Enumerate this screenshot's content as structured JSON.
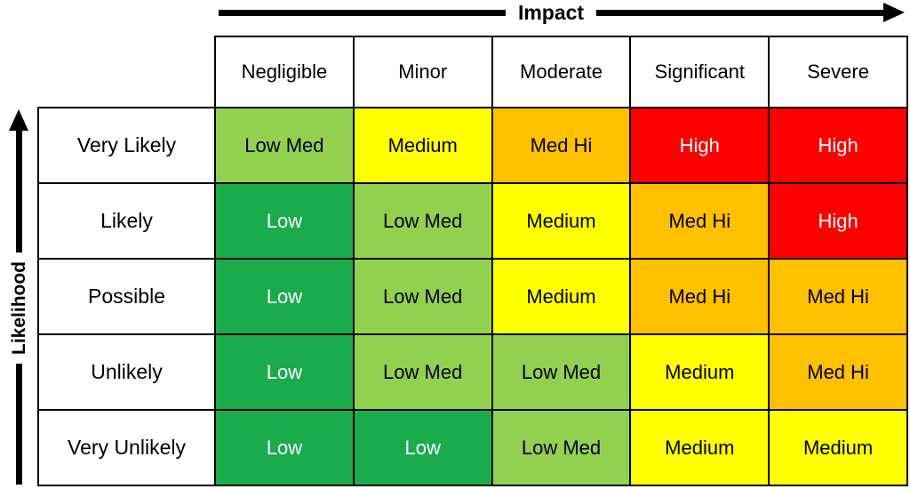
{
  "axes": {
    "x_label": "Impact",
    "y_label": "Likelihood"
  },
  "matrix": {
    "column_headers": [
      "Negligible",
      "Minor",
      "Moderate",
      "Significant",
      "Severe"
    ],
    "row_headers": [
      "Very Likely",
      "Likely",
      "Possible",
      "Unlikely",
      "Very Unlikely"
    ],
    "cells": [
      [
        "Low Med",
        "Medium",
        "Med Hi",
        "High",
        "High"
      ],
      [
        "Low",
        "Low Med",
        "Medium",
        "Med Hi",
        "High"
      ],
      [
        "Low",
        "Low Med",
        "Medium",
        "Med Hi",
        "Med Hi"
      ],
      [
        "Low",
        "Low Med",
        "Low Med",
        "Medium",
        "Med Hi"
      ],
      [
        "Low",
        "Low",
        "Low Med",
        "Medium",
        "Medium"
      ]
    ]
  },
  "colors": {
    "low": {
      "bg": "#1AAB4D",
      "text": "#FFFFFF"
    },
    "low-med": {
      "bg": "#92D050",
      "text": "#000000"
    },
    "medium": {
      "bg": "#FFFF00",
      "text": "#000000"
    },
    "med-hi": {
      "bg": "#FFC000",
      "text": "#000000"
    },
    "high": {
      "bg": "#FE0000",
      "text": "#FFFFFF"
    },
    "border": "#000000",
    "header_bg": "#FFFFFF",
    "header_text": "#000000"
  }
}
